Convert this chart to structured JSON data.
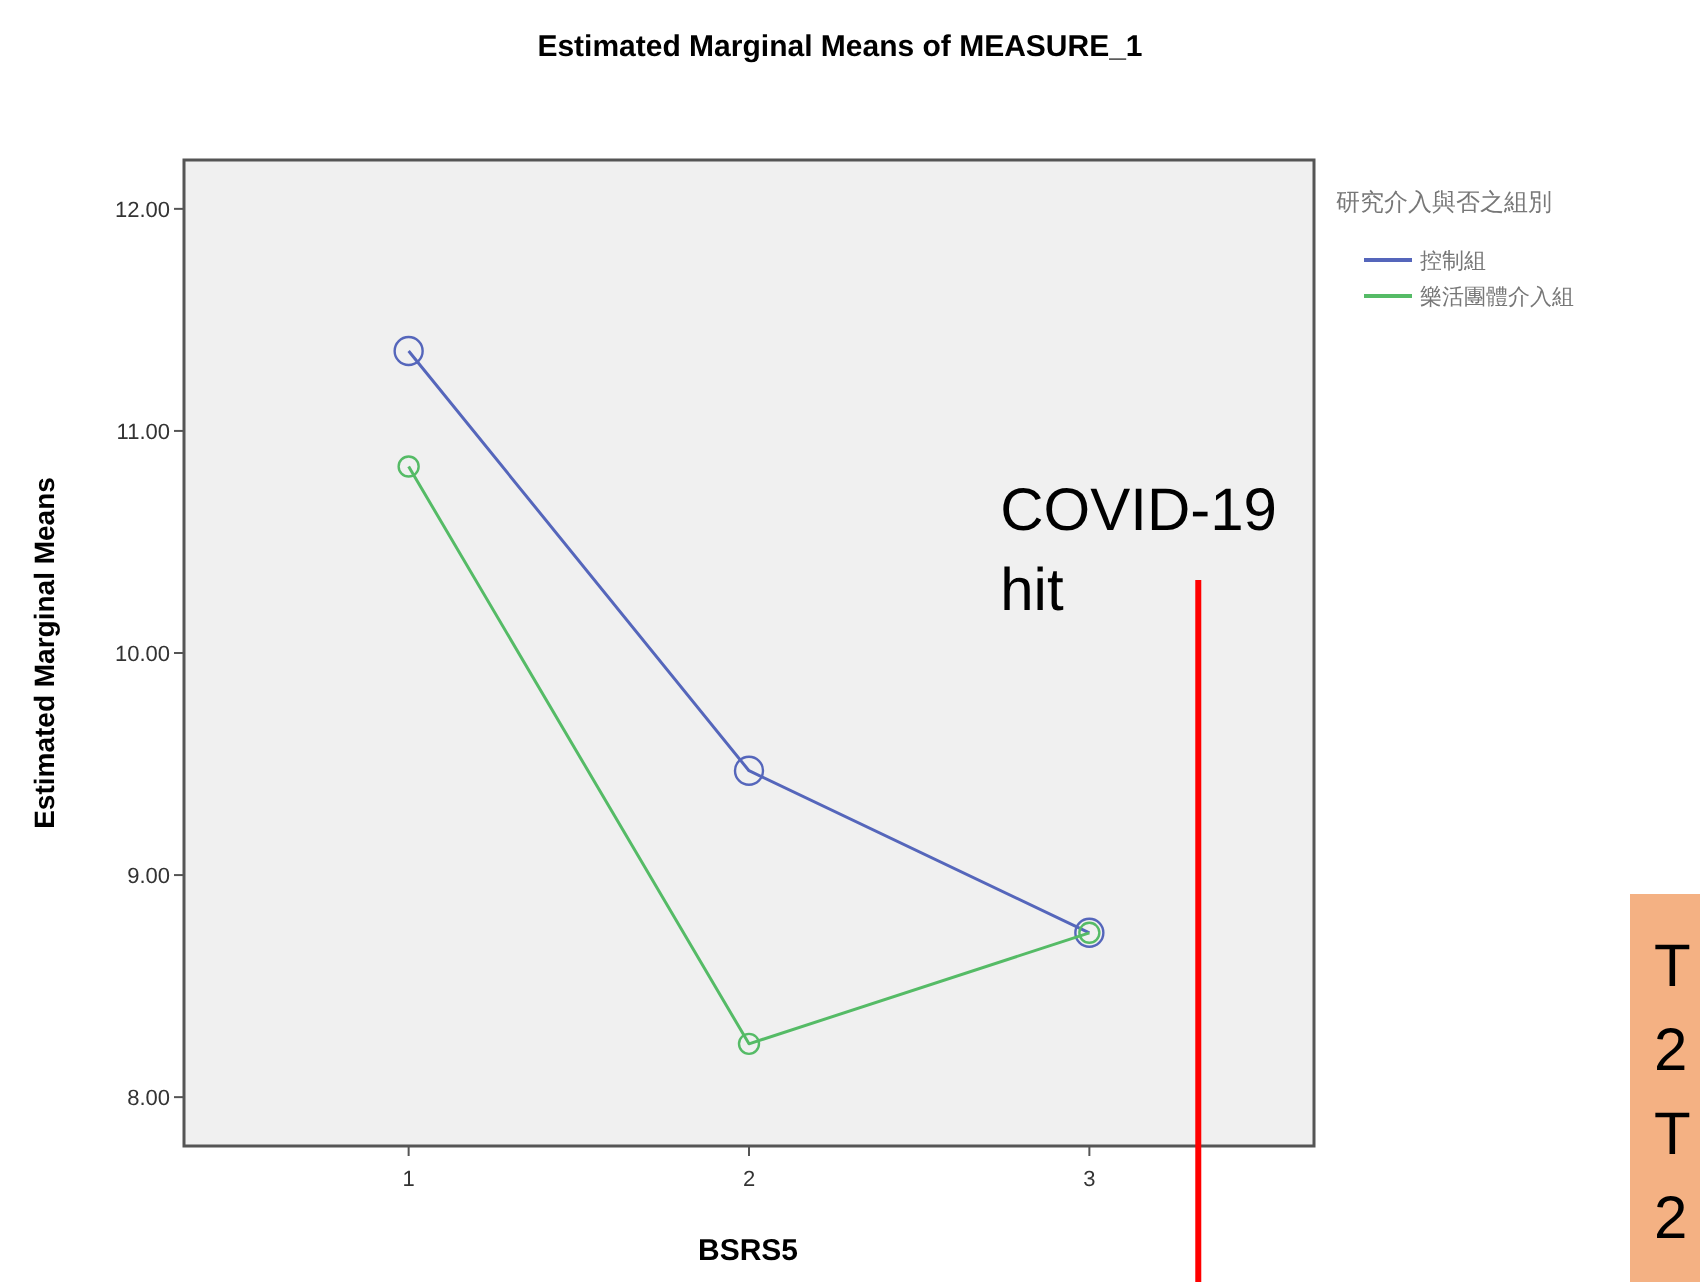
{
  "chart_data": {
    "type": "line",
    "title": "Estimated Marginal Means of MEASURE_1",
    "xlabel": "BSRS5",
    "ylabel": "Estimated Marginal Means",
    "legend_title": "研究介入與否之組別",
    "x": [
      1,
      2,
      3
    ],
    "series": [
      {
        "name": "控制組",
        "color": "#5566bb",
        "values": [
          11.36,
          9.47,
          8.74
        ]
      },
      {
        "name": "樂活團體介入組",
        "color": "#55bb66",
        "values": [
          10.84,
          8.24,
          8.74
        ]
      }
    ],
    "xlim": [
      0.34,
      3.66
    ],
    "xticks": [
      1,
      2,
      3
    ],
    "ylim": [
      7.78,
      12.22
    ],
    "yticks": [
      {
        "value": 8,
        "label": "8.00"
      },
      {
        "value": 9,
        "label": "9.00"
      },
      {
        "value": 10,
        "label": "10.00"
      },
      {
        "value": 11,
        "label": "11.00"
      },
      {
        "value": 12,
        "label": "12.00"
      }
    ],
    "ref_lines": [
      {
        "axis": "x",
        "value": 3.32,
        "label": "COVID-19 hit",
        "color": "#ff0000"
      }
    ],
    "annotations": [
      "T 2 T 2"
    ],
    "marker": "circle",
    "grid": false,
    "legend": "right"
  }
}
